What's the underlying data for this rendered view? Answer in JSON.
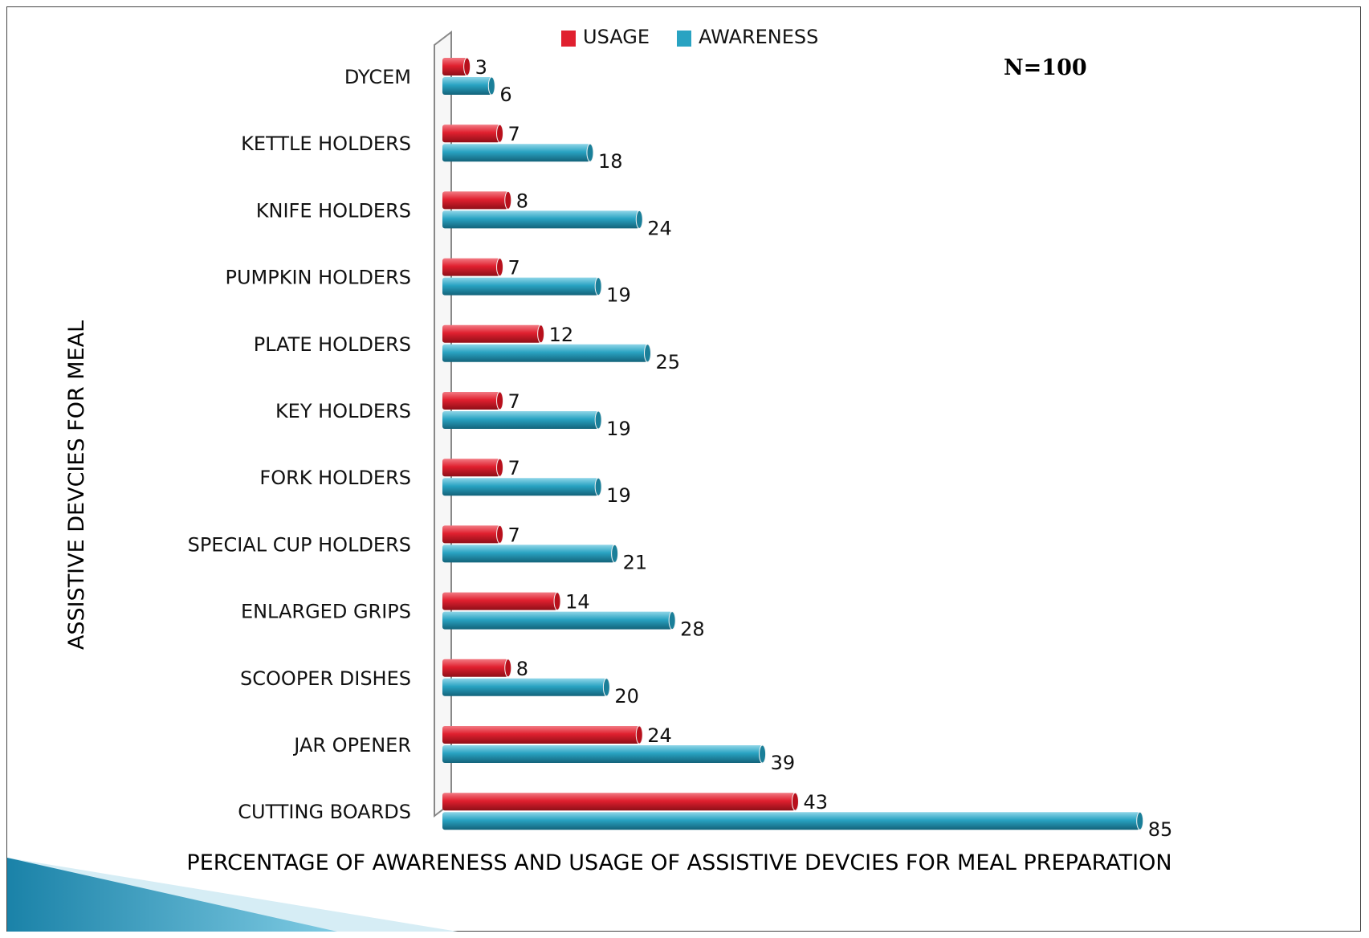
{
  "chart_data": {
    "type": "bar",
    "orientation": "horizontal",
    "categories": [
      "DYCEM",
      "KETTLE HOLDERS",
      "KNIFE HOLDERS",
      "PUMPKIN HOLDERS",
      "PLATE HOLDERS",
      "KEY HOLDERS",
      "FORK HOLDERS",
      "SPECIAL CUP HOLDERS",
      "ENLARGED GRIPS",
      "SCOOPER DISHES",
      "JAR OPENER",
      "CUTTING BOARDS"
    ],
    "series": [
      {
        "name": "USAGE",
        "color": "#e0202f",
        "values": [
          3,
          7,
          8,
          7,
          12,
          7,
          7,
          7,
          14,
          8,
          24,
          43
        ]
      },
      {
        "name": "AWARENESS",
        "color": "#29a3c2",
        "values": [
          6,
          18,
          24,
          19,
          25,
          19,
          19,
          21,
          28,
          20,
          39,
          85
        ]
      }
    ],
    "xlabel": "PERCENTAGE OF AWARENESS AND USAGE OF ASSISTIVE DEVCIES FOR MEAL PREPARATION",
    "ylabel": "ASSISTIVE DEVCIES FOR MEAL",
    "annotation": "N=100",
    "xlim": [
      0,
      100
    ],
    "grid": false,
    "legend": "top-center"
  }
}
